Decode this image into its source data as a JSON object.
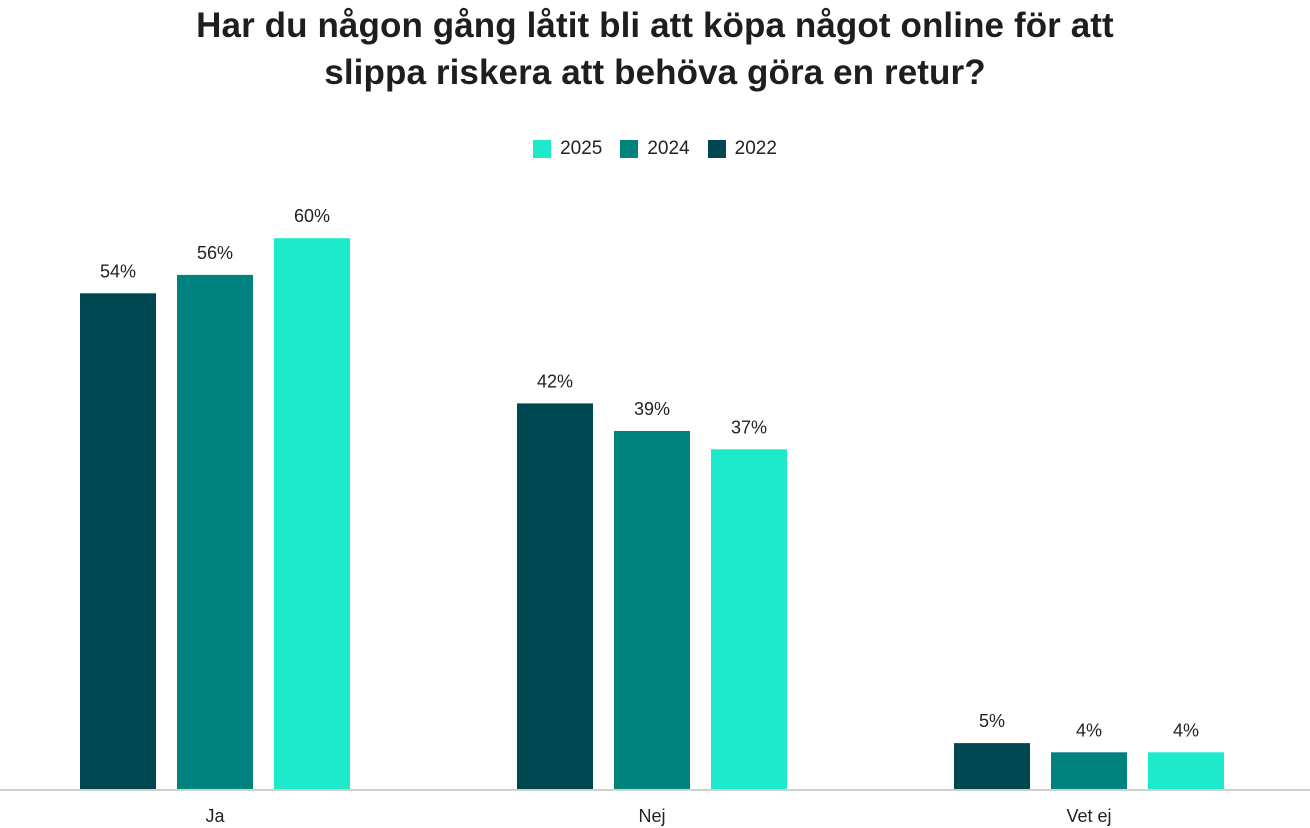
{
  "chart_data": {
    "type": "bar",
    "title": "Har du någon gång låtit bli att köpa något online för att slippa riskera att behöva göra en retur?",
    "title_lines": [
      "Har du någon gång låtit bli att köpa något online för att",
      "slippa riskera att behöva göra en retur?"
    ],
    "categories": [
      "Ja",
      "Nej",
      "Vet ej"
    ],
    "series": [
      {
        "name": "2022",
        "values": [
          54,
          42,
          5
        ],
        "labels": [
          "54%",
          "42%",
          "5%"
        ],
        "color": "#004851"
      },
      {
        "name": "2024",
        "values": [
          56,
          39,
          4
        ],
        "labels": [
          "56%",
          "39%",
          "4%"
        ],
        "color": "#00827F"
      },
      {
        "name": "2025",
        "values": [
          60,
          37,
          4
        ],
        "labels": [
          "60%",
          "37%",
          "4%"
        ],
        "color": "#1DE9CB"
      }
    ],
    "legend": {
      "placement": "top-center",
      "order": [
        "2025",
        "2024",
        "2022"
      ]
    },
    "ylim": [
      0,
      60
    ],
    "unit": "%",
    "grid": false,
    "xlabel": "",
    "ylabel": "",
    "baseline_color": "#d0d0d0"
  }
}
